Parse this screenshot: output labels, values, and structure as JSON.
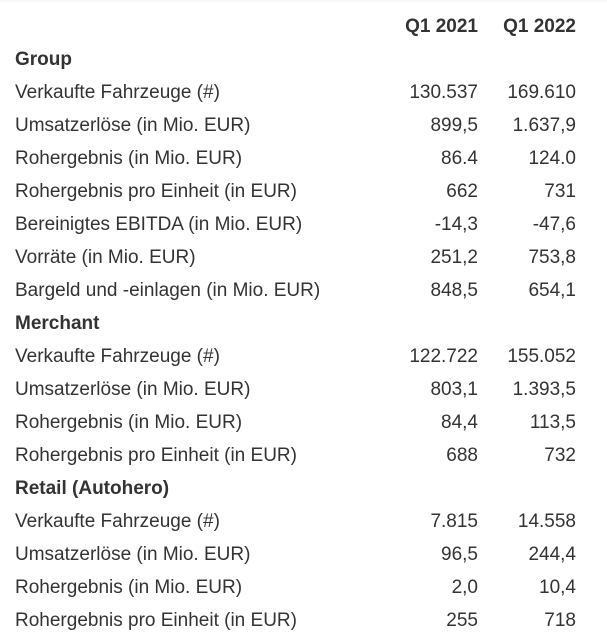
{
  "page": {
    "background": "#ffffff",
    "text_color": "#333333",
    "top_border_color": "#f7f7f7"
  },
  "chart_data": {
    "type": "table",
    "columns": [
      "",
      "Q1 2021",
      "Q1 2022"
    ],
    "layout": {
      "column_alignment": [
        "left",
        "right",
        "right"
      ],
      "grid": "off",
      "legend": "none",
      "section_headers_bold": true
    },
    "sections": [
      {
        "header": "Group",
        "rows": [
          [
            "Verkaufte Fahrzeuge (#)",
            "130.537",
            "169.610"
          ],
          [
            "Umsatzerlöse (in Mio. EUR)",
            "899,5",
            "1.637,9"
          ],
          [
            "Rohergebnis (in Mio. EUR)",
            "86.4",
            "124.0"
          ],
          [
            "Rohergebnis pro Einheit (in EUR)",
            "662",
            "731"
          ],
          [
            "Bereinigtes EBITDA (in Mio. EUR)",
            "-14,3",
            "-47,6"
          ],
          [
            "Vorräte (in Mio. EUR)",
            "251,2",
            "753,8"
          ],
          [
            "Bargeld und -einlagen (in Mio. EUR)",
            "848,5",
            "654,1"
          ]
        ]
      },
      {
        "header": "Merchant",
        "rows": [
          [
            "Verkaufte Fahrzeuge (#)",
            "122.722",
            "155.052"
          ],
          [
            "Umsatzerlöse (in Mio. EUR)",
            "803,1",
            "1.393,5"
          ],
          [
            "Rohergebnis (in Mio. EUR)",
            "84,4",
            "113,5"
          ],
          [
            "Rohergebnis pro Einheit (in EUR)",
            "688",
            "732"
          ]
        ]
      },
      {
        "header": "Retail (Autohero)",
        "rows": [
          [
            "Verkaufte Fahrzeuge (#)",
            "7.815",
            "14.558"
          ],
          [
            "Umsatzerlöse (in Mio. EUR)",
            "96,5",
            "244,4"
          ],
          [
            "Rohergebnis (in Mio. EUR)",
            "2,0",
            "10,4"
          ],
          [
            "Rohergebnis pro Einheit (in EUR)",
            "255",
            "718"
          ]
        ]
      }
    ]
  }
}
